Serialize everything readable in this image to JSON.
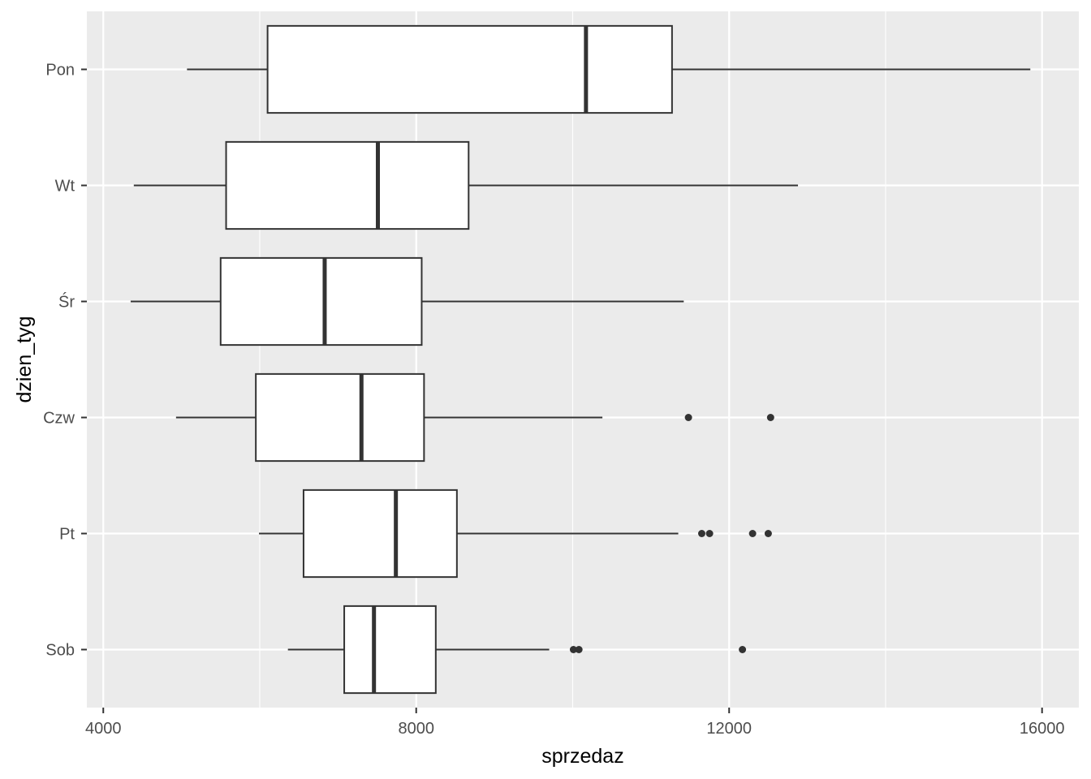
{
  "chart_data": {
    "type": "boxplot",
    "orientation": "horizontal",
    "xlabel": "sprzedaz",
    "ylabel": "dzien_tyg",
    "xlim": [
      3790,
      16470
    ],
    "x_ticks": [
      4000,
      8000,
      12000,
      16000
    ],
    "x_tick_labels": [
      "4000",
      "8000",
      "12000",
      "16000"
    ],
    "grid": true,
    "legend": "none",
    "colors": {
      "panel_background": "#ebebeb",
      "grid_line": "#ffffff",
      "box_fill": "#ffffff",
      "box_outline": "#333333",
      "tick_text": "#4d4d4d"
    },
    "categories": [
      "Pon",
      "Wt",
      "Śr",
      "Czw",
      "Pt",
      "Sob"
    ],
    "boxes": [
      {
        "category": "Pon",
        "whisker_low": 5070,
        "q1": 6100,
        "median": 10170,
        "q3": 11270,
        "whisker_high": 15850,
        "outliers": []
      },
      {
        "category": "Wt",
        "whisker_low": 4390,
        "q1": 5570,
        "median": 7510,
        "q3": 8670,
        "whisker_high": 12880,
        "outliers": []
      },
      {
        "category": "Śr",
        "whisker_low": 4350,
        "q1": 5500,
        "median": 6830,
        "q3": 8070,
        "whisker_high": 11420,
        "outliers": []
      },
      {
        "category": "Czw",
        "whisker_low": 4930,
        "q1": 5950,
        "median": 7300,
        "q3": 8100,
        "whisker_high": 10380,
        "outliers": [
          11480,
          12530
        ]
      },
      {
        "category": "Pt",
        "whisker_low": 5990,
        "q1": 6560,
        "median": 7740,
        "q3": 8520,
        "whisker_high": 11350,
        "outliers": [
          11650,
          11750,
          12300,
          12500
        ]
      },
      {
        "category": "Sob",
        "whisker_low": 6360,
        "q1": 7080,
        "median": 7460,
        "q3": 8250,
        "whisker_high": 9700,
        "outliers": [
          10010,
          10080,
          12170
        ]
      }
    ]
  }
}
